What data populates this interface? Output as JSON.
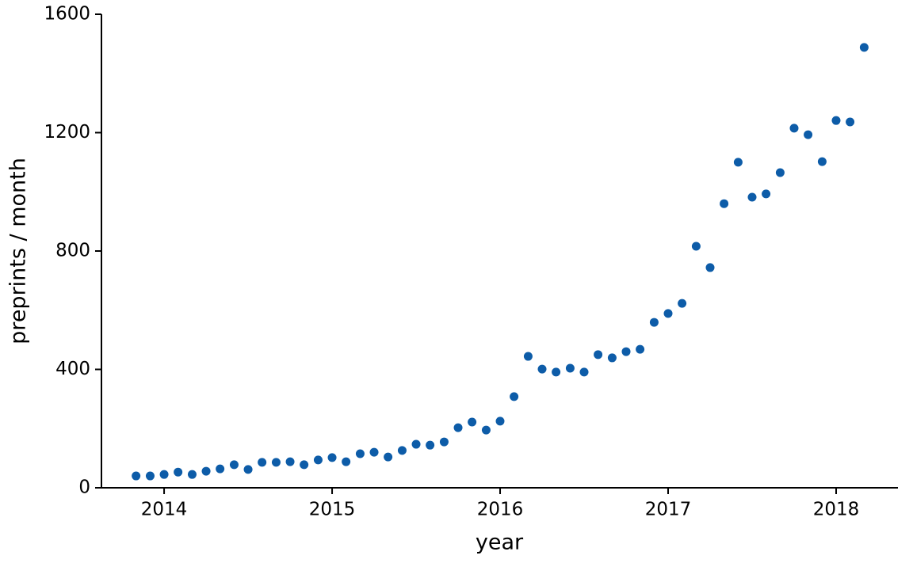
{
  "chart_data": {
    "type": "scatter",
    "x_label": "year",
    "y_label": "preprints / month",
    "color": "#0d5ca8",
    "x": [
      2013.833,
      2013.917,
      2014.0,
      2014.083,
      2014.167,
      2014.25,
      2014.333,
      2014.417,
      2014.5,
      2014.583,
      2014.667,
      2014.75,
      2014.833,
      2014.917,
      2015.0,
      2015.083,
      2015.167,
      2015.25,
      2015.333,
      2015.417,
      2015.5,
      2015.583,
      2015.667,
      2015.75,
      2015.833,
      2015.917,
      2016.0,
      2016.083,
      2016.167,
      2016.25,
      2016.333,
      2016.417,
      2016.5,
      2016.583,
      2016.667,
      2016.75,
      2016.833,
      2016.917,
      2017.0,
      2017.083,
      2017.167,
      2017.25,
      2017.333,
      2017.417,
      2017.5,
      2017.583,
      2017.667,
      2017.75,
      2017.833,
      2017.917,
      2018.0,
      2018.083,
      2018.167
    ],
    "values": [
      40,
      40,
      45,
      53,
      45,
      56,
      64,
      78,
      62,
      86,
      86,
      88,
      78,
      94,
      102,
      88,
      115,
      120,
      104,
      126,
      147,
      144,
      155,
      203,
      222,
      195,
      225,
      308,
      444,
      401,
      391,
      404,
      391,
      450,
      439,
      460,
      468,
      559,
      589,
      623,
      816,
      744,
      960,
      1100,
      982,
      993,
      1065,
      1215,
      1193,
      1102,
      1241,
      1236,
      1488
    ],
    "xlim": [
      2013.627,
      2018.368
    ],
    "xticks": [
      2014,
      2015,
      2016,
      2017,
      2018
    ],
    "ylim": [
      0,
      1600
    ],
    "yticks": [
      0,
      400,
      800,
      1200,
      1600
    ]
  }
}
